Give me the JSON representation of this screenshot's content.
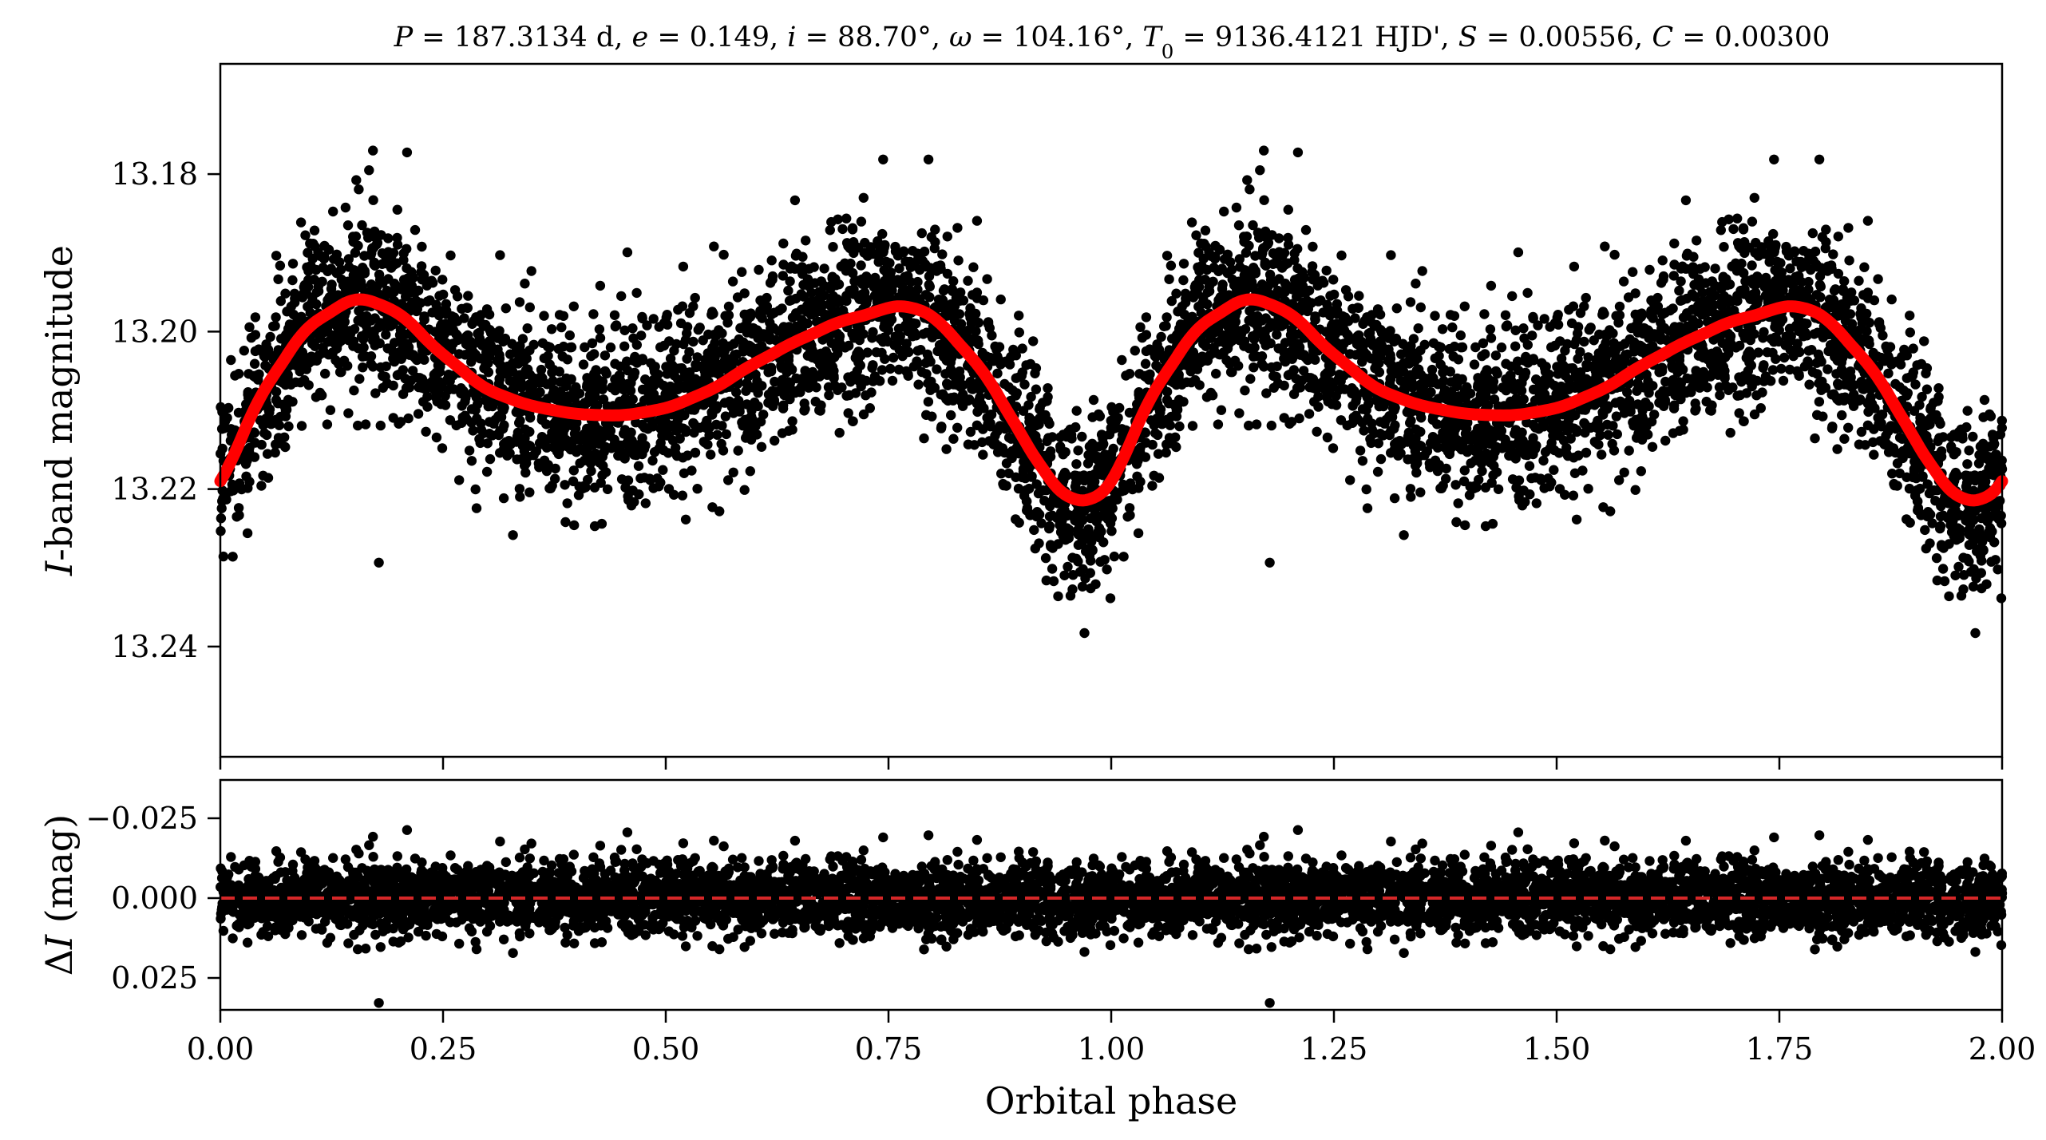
{
  "title_parts": [
    {
      "text": "P",
      "italic": true
    },
    {
      "text": " = 187.3134 d, "
    },
    {
      "text": "e",
      "italic": true
    },
    {
      "text": " = 0.149, "
    },
    {
      "text": "i",
      "italic": true
    },
    {
      "text": " = 88.70°, "
    },
    {
      "text": "ω",
      "italic": true
    },
    {
      "text": " = 104.16°, "
    },
    {
      "text": "T",
      "italic": true
    },
    {
      "text": "0",
      "sub": true
    },
    {
      "text": " = 9136.4121 HJD', "
    },
    {
      "text": "S",
      "italic": true
    },
    {
      "text": " = 0.00556, "
    },
    {
      "text": "C",
      "italic": true
    },
    {
      "text": " = 0.00300"
    }
  ],
  "colors": {
    "points": "#000000",
    "model": "#ff0000",
    "zero_line": "#d62728",
    "axes": "#000000"
  },
  "chart_data": [
    {
      "type": "scatter",
      "panel": "top",
      "ylabel_parts": [
        {
          "text": "I",
          "italic": true
        },
        {
          "text": "-band magnitude"
        }
      ],
      "xlabel": "",
      "xlim": [
        0.0,
        2.0
      ],
      "ylim": [
        13.254,
        13.166
      ],
      "y_inverted": true,
      "yticks": [
        13.18,
        13.2,
        13.22,
        13.24
      ],
      "ytick_labels": [
        "13.18",
        "13.20",
        "13.22",
        "13.24"
      ],
      "xticks": [
        0.0,
        0.25,
        0.5,
        0.75,
        1.0,
        1.25,
        1.5,
        1.75,
        2.0
      ],
      "grid": false,
      "legend": "none",
      "model_curve": {
        "phase": [
          0.0,
          0.05,
          0.1,
          0.155,
          0.2,
          0.25,
          0.3,
          0.35,
          0.4,
          0.45,
          0.5,
          0.55,
          0.6,
          0.65,
          0.7,
          0.77,
          0.8,
          0.85,
          0.9,
          0.935,
          0.975,
          1.0
        ],
        "magnitude": [
          13.2193,
          13.207,
          13.199,
          13.1955,
          13.1975,
          13.203,
          13.2075,
          13.2095,
          13.2105,
          13.2107,
          13.2098,
          13.2075,
          13.204,
          13.201,
          13.1985,
          13.1965,
          13.198,
          13.204,
          13.213,
          13.22,
          13.2222,
          13.2193
        ]
      },
      "scatter_summary": {
        "n_points_per_cycle": 3000,
        "scatter_sigma_mag": 0.0055,
        "cycles_plotted": 2
      }
    },
    {
      "type": "scatter",
      "panel": "bottom",
      "ylabel_parts": [
        {
          "text": "Δ"
        },
        {
          "text": "I",
          "italic": true
        },
        {
          "text": " (mag)"
        }
      ],
      "xlabel": "Orbital phase",
      "xlim": [
        0.0,
        2.0
      ],
      "ylim": [
        0.035,
        -0.037
      ],
      "y_inverted": true,
      "yticks": [
        -0.025,
        0.0,
        0.025
      ],
      "ytick_labels": [
        "−0.025",
        "0.000",
        "0.025"
      ],
      "xticks": [
        0.0,
        0.25,
        0.5,
        0.75,
        1.0,
        1.25,
        1.5,
        1.75,
        2.0
      ],
      "xtick_labels": [
        "0.00",
        "0.25",
        "0.50",
        "0.75",
        "1.00",
        "1.25",
        "1.50",
        "1.75",
        "2.00"
      ],
      "zero_line": 0.0,
      "grid": false,
      "legend": "none",
      "residual_sigma_mag": 0.0055
    }
  ]
}
